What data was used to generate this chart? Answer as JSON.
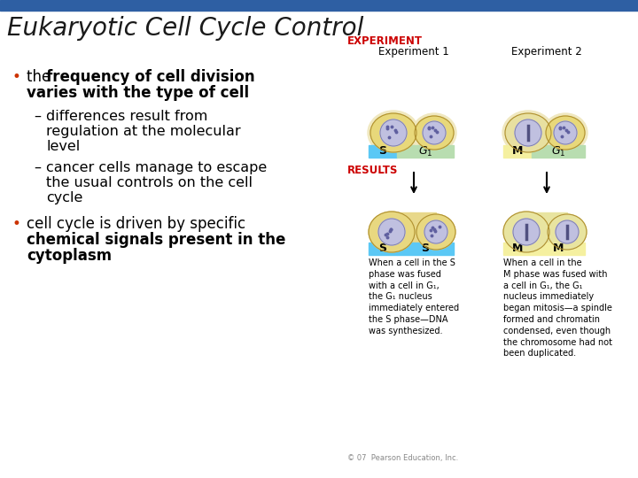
{
  "title": "Eukaryotic Cell Cycle Control",
  "title_color": "#1a1a1a",
  "title_font_size": 20,
  "header_bar_color": "#2e5fa3",
  "background_color": "#ffffff",
  "experiment_label": "EXPERIMENT",
  "experiment_color": "#cc0000",
  "exp1_label": "Experiment 1",
  "exp2_label": "Experiment 2",
  "results_label": "RESULTS",
  "results_color": "#cc0000",
  "s_color": "#5bc8f5",
  "g1_color": "#b8ddb0",
  "m_color": "#f5f0a0",
  "cell_outer_color": "#e8d87a",
  "cell_inner_color": "#c0c0e0",
  "bullet_color": "#cc3300",
  "caption1": "When a cell in the S\nphase was fused\nwith a cell in G₁,\nthe G₁ nucleus\nimmediately entered\nthe S phase—DNA\nwas synthesized.",
  "caption2": "When a cell in the\nM phase was fused with\na cell in G₁, the G₁\nnucleus immediately\nbegan mitosis—a spindle\nformed and chromatin\ncondensed, even though\nthe chromosome had not\nbeen duplicated.",
  "footer": "© 07  Pearson Education, Inc."
}
